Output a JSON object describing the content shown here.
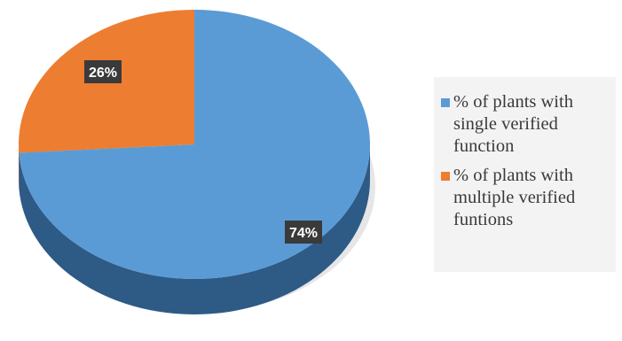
{
  "chart_data": {
    "type": "pie",
    "title": "",
    "style": "3d",
    "slices": [
      {
        "label": "% of plants with single verified function",
        "legend_text": "% of plants with\nsingle verified\nfunction",
        "value": 74,
        "display_label": "74%",
        "color": "#5b9bd5",
        "side_color": "#2e5a86"
      },
      {
        "label": "% of plants with multiple verified funtions",
        "legend_text": "% of plants with\nmultiple verified\nfuntions",
        "value": 26,
        "display_label": "26%",
        "color": "#ed7d31",
        "side_color": "#a85820"
      }
    ],
    "legend_position": "right",
    "label_style": {
      "background": "#3a3a3a",
      "color": "#ffffff"
    }
  }
}
